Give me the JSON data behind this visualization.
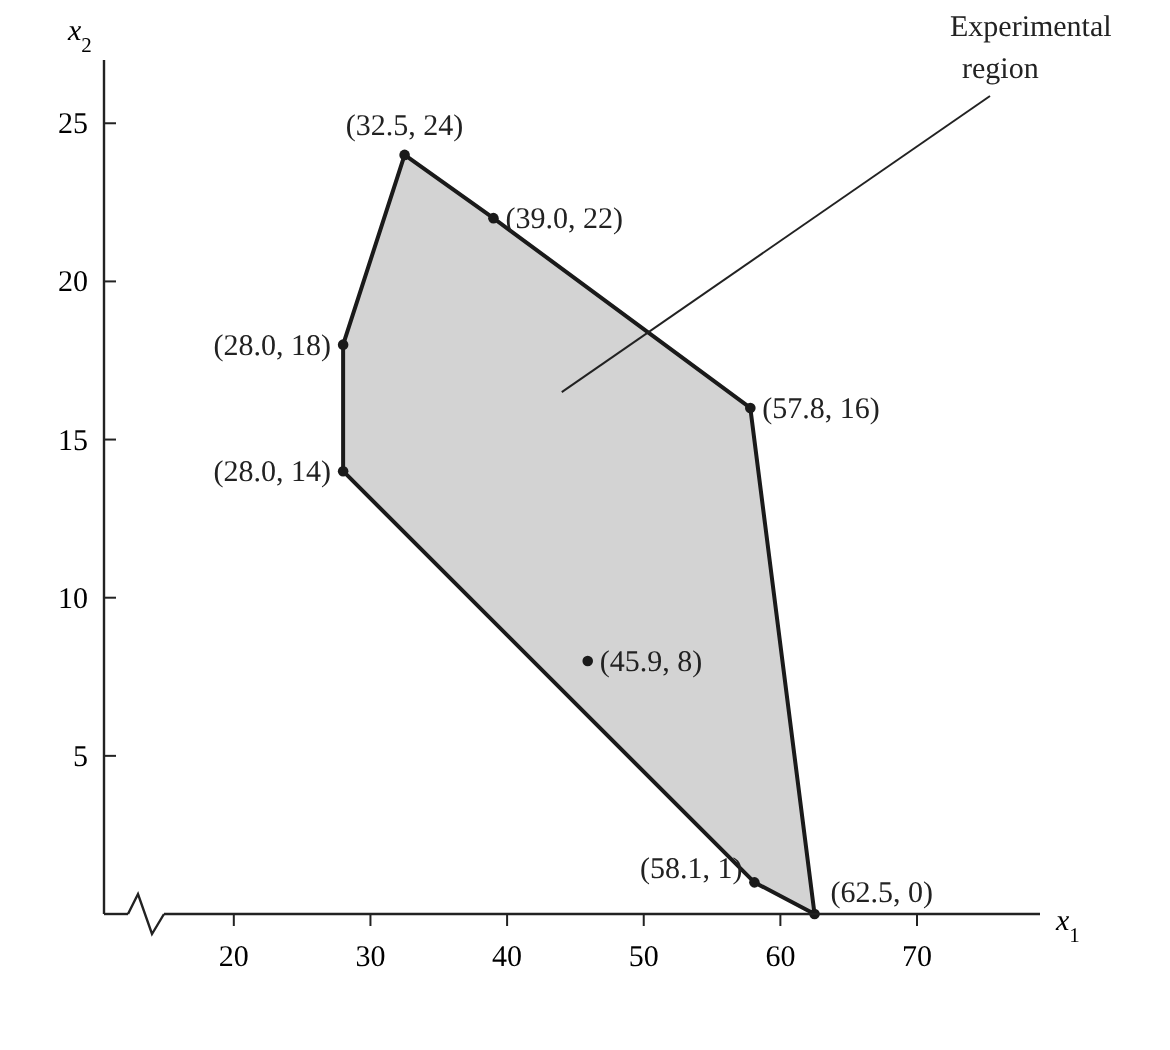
{
  "chart_data": {
    "type": "scatter",
    "xlabel": "x$_{1}$",
    "ylabel": "x$_{2}$",
    "xlim": [
      10.5,
      79
    ],
    "ylim": [
      0,
      27
    ],
    "xticks": [
      20,
      30,
      40,
      50,
      60,
      70
    ],
    "yticks": [
      5,
      10,
      15,
      20,
      25
    ],
    "grid": false,
    "annotations": [
      "Experimental region"
    ],
    "series": [
      {
        "type": "area",
        "color": "#d3d3d3",
        "x": [
          28,
          28,
          32.5,
          39,
          57.8,
          62.5,
          58.1,
          28
        ],
        "values": [
          14,
          18,
          24,
          22,
          16,
          0,
          1,
          14
        ]
      },
      {
        "marker": "circle",
        "color": "#1a1a1a",
        "x": [
          32.5,
          39,
          28,
          57.8,
          28,
          45.9,
          58.1,
          62.5
        ],
        "values": [
          24,
          22,
          18,
          16,
          14,
          8,
          1,
          0
        ],
        "value_labels": [
          "(32.5, 24)",
          "(39.0, 22)",
          "(28.0, 18)",
          "(57.8, 16)",
          "(28.0, 14)",
          "(45.9, 8)",
          "(58.1, 1)",
          "(62.5, 0)"
        ]
      }
    ]
  }
}
